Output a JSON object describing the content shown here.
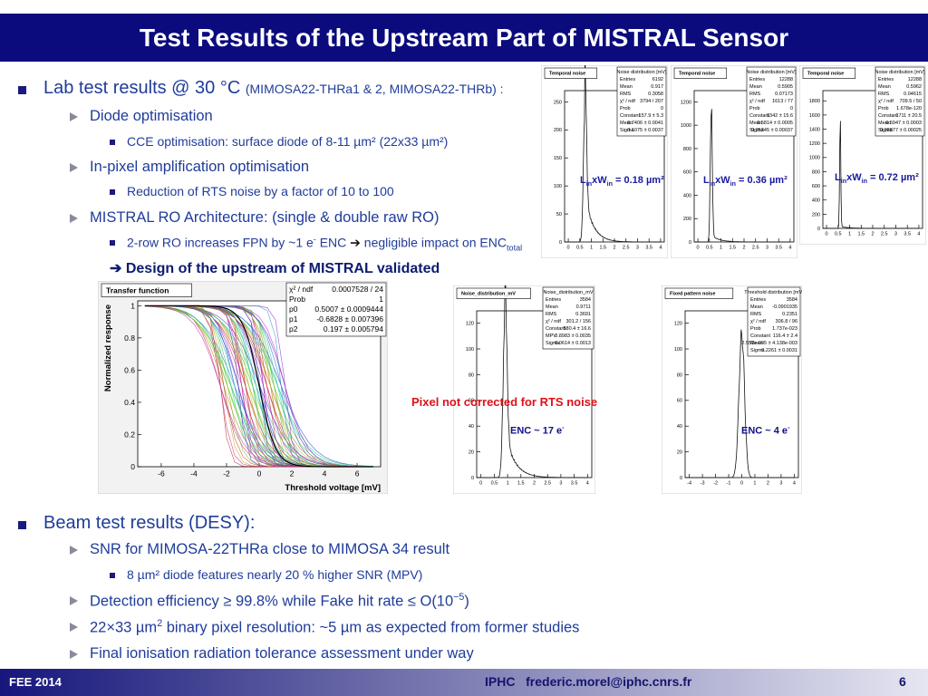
{
  "header": {
    "title": "Test Results of the Upstream Part of MISTRAL Sensor"
  },
  "lab": {
    "heading": [
      "Lab test results @ 30 °C",
      "(MIMOSA22-THRa1 & 2, MIMOSA22-THRb) :"
    ],
    "items": [
      [
        "Diode optimisation"
      ],
      [
        "CCE  optimisation: surface diode of 8-11 µm² (22x33 µm²)"
      ],
      [
        "In-pixel amplification optimisation"
      ],
      [
        "Reduction of RTS noise by a factor of 10 to 100"
      ],
      [
        "MISTRAL RO Architecture: (single & double raw RO)"
      ],
      [
        "2-row RO increases FPN by ~1 e",
        "-",
        " ENC ",
        "➔",
        " negligible impact on ENC",
        "total"
      ],
      [
        "➔ Design of the upstream of MISTRAL validated"
      ]
    ]
  },
  "beam": {
    "heading": "Beam test results (DESY):",
    "items": [
      [
        "SNR for MIMOSA-22THRa close to MIMOSA 34 result"
      ],
      [
        "8 µm² diode features nearly 20 % higher SNR (MPV)"
      ],
      [
        "Detection efficiency ≥ 99.8% while Fake hit rate ≤ O(10",
        "−5",
        ")"
      ],
      [
        "22×33 µm",
        "2",
        " binary pixel resolution: ~5 µm as expected from former studies"
      ],
      [
        "Final ionisation radiation tolerance assessment under way"
      ]
    ]
  },
  "figures": {
    "temporal": [
      {
        "title": "Temporal noise",
        "stats_title": "Noise distribution [mV]",
        "stats": [
          [
            "Entries",
            "6192"
          ],
          [
            "Mean",
            "0.917"
          ],
          [
            "RMS",
            "0.3058"
          ],
          [
            "χ² / ndf",
            "3794 / 207"
          ],
          [
            "Prob",
            "0"
          ],
          [
            "Constant",
            "157.9 ± 5.3"
          ],
          [
            "Mean",
            "0.7406 ± 0.0041"
          ],
          [
            "Sigma",
            "0.1075 ± 0.0037"
          ]
        ],
        "xticks": [
          0,
          0.5,
          1,
          1.5,
          2,
          2.5,
          3,
          3.5,
          4
        ],
        "yticks": [
          0,
          50,
          100,
          150,
          200,
          250
        ],
        "caption": [
          "L",
          "in",
          "xW",
          "in",
          " = 0.18 µm²"
        ]
      },
      {
        "title": "Temporal noise",
        "stats_title": "Noise distribution [mV]",
        "stats": [
          [
            "Entries",
            "12288"
          ],
          [
            "Mean",
            "0.5905"
          ],
          [
            "RMS",
            "0.07173"
          ],
          [
            "χ² / ndf",
            "1613 / 77"
          ],
          [
            "Prob",
            "0"
          ],
          [
            "Constant",
            "1342 ± 15.6"
          ],
          [
            "Mean",
            "0.5814 ± 0.0005"
          ],
          [
            "Sigma",
            "0.05345 ± 0.00037"
          ]
        ],
        "xticks": [
          0,
          0.5,
          1,
          1.5,
          2,
          2.5,
          3,
          3.5,
          4
        ],
        "yticks": [
          0,
          200,
          400,
          600,
          800,
          1000,
          1200
        ],
        "caption": [
          "L",
          "in",
          "xW",
          "in",
          " = 0.36 µm²"
        ]
      },
      {
        "title": "Temporal noise",
        "stats_title": "Noise distribution [mV]",
        "stats": [
          [
            "Entries",
            "12288"
          ],
          [
            "Mean",
            "0.5962"
          ],
          [
            "RMS",
            "0.04615"
          ],
          [
            "χ² / ndf",
            "709.5 / 50"
          ],
          [
            "Prob",
            "1.678e-120"
          ],
          [
            "Constant",
            "1711 ± 20.5"
          ],
          [
            "Mean",
            "0.5947 ± 0.0003"
          ],
          [
            "Sigma",
            "0.02877 ± 0.00025"
          ]
        ],
        "xticks": [
          0,
          0.5,
          1,
          1.5,
          2,
          2.5,
          3,
          3.5,
          4
        ],
        "yticks": [
          0,
          200,
          400,
          600,
          800,
          1000,
          1200,
          1400,
          1600,
          1800
        ],
        "caption": [
          "L",
          "in",
          "xW",
          "in",
          " = 0.72 µm²"
        ]
      }
    ],
    "transfer": {
      "title": "Transfer function",
      "ylabel": "Normalized response",
      "xlabel": "Threshold voltage [mV]",
      "stats": [
        [
          "χ² / ndf",
          "0.0007528 / 24"
        ],
        [
          "Prob",
          "1"
        ],
        [
          "p0",
          "0.5007 ± 0.0009444"
        ],
        [
          "p1",
          "-0.6828 ± 0.007396"
        ],
        [
          "p2",
          "0.197 ± 0.005794"
        ]
      ],
      "xticks": [
        -6,
        -4,
        -2,
        0,
        2,
        4,
        6
      ],
      "yticks": [
        0,
        0.2,
        0.4,
        0.6,
        0.8,
        1
      ]
    },
    "noise": {
      "title": "Noise_distribution_mV",
      "stats_title": "Noise_distribution_mV",
      "stats": [
        [
          "Entries",
          "3584"
        ],
        [
          "Mean",
          "0.9711"
        ],
        [
          "RMS",
          "0.3691"
        ],
        [
          "χ² / ndf",
          "301.2 / 156"
        ],
        [
          "Constant",
          "580.4 ± 16.6"
        ],
        [
          "MPV",
          "0.8983 ± 0.0035"
        ],
        [
          "Sigma",
          "0.0614 ± 0.0013"
        ]
      ],
      "xticks": [
        0,
        0.5,
        1,
        1.5,
        2,
        2.5,
        3,
        3.5,
        4
      ],
      "yticks": [
        0,
        20,
        40,
        60,
        80,
        100,
        120
      ],
      "caption": [
        "ENC ~ 17 e",
        "-"
      ]
    },
    "fpn": {
      "title": "Fixed pattern noise",
      "stats_title": "Threshold distribution [mV]",
      "stats": [
        [
          "Entries",
          "3584"
        ],
        [
          "Mean",
          "-0.0901935"
        ],
        [
          "RMS",
          "0.2351"
        ],
        [
          "χ² / ndf",
          "306.8 / 96"
        ],
        [
          "Prob",
          "1.737e-023"
        ],
        [
          "Constant",
          "116.4 ± 2.4"
        ],
        [
          "Mean",
          "2.551e-005 ± 4.138e-003"
        ],
        [
          "Sigma",
          "0.2261 ± 0.0031"
        ]
      ],
      "xticks": [
        -4,
        -3,
        -2,
        -1,
        0,
        1,
        2,
        3,
        4
      ],
      "yticks": [
        0,
        20,
        40,
        60,
        80,
        100,
        120
      ],
      "caption": [
        "ENC ~ 4 e",
        "-"
      ]
    },
    "note": "Pixel not corrected for RTS noise"
  },
  "footer": {
    "left": "FEE 2014",
    "center": "IPHC   frederic.morel@iphc.cnrs.fr",
    "page": "6"
  }
}
